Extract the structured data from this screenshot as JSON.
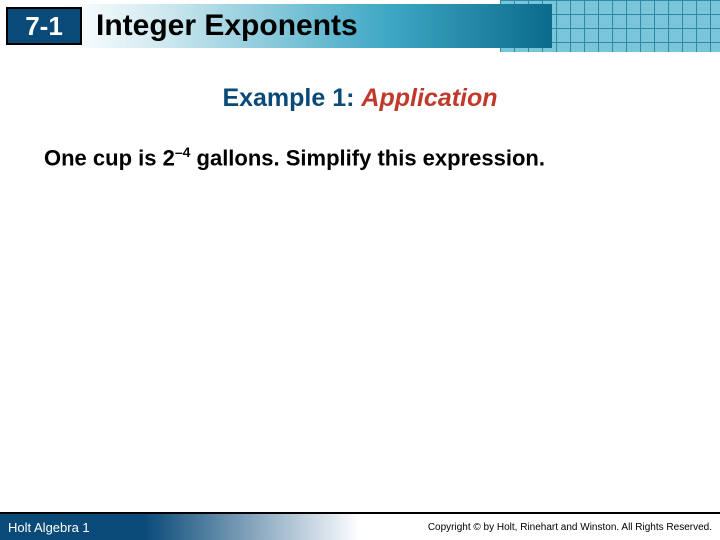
{
  "header": {
    "section_number": "7-1",
    "title": "Integer Exponents",
    "badge_bg": "#0a4a78",
    "badge_text_color": "#ffffff",
    "title_color": "#000000",
    "gradient_colors": [
      "#ffffff",
      "#cde8ef",
      "#3fa8c4",
      "#0a6b8a"
    ],
    "grid_bg_color": "#7ac5d8",
    "grid_line_color": "#2a8aa8"
  },
  "example": {
    "label": "Example 1:",
    "name": "Application",
    "label_color": "#0a4a78",
    "name_color": "#c0392b",
    "fontsize": 25
  },
  "problem": {
    "prefix": "One cup is 2",
    "exponent": "–4",
    "suffix": " gallons. Simplify this expression.",
    "fontsize": 22,
    "color": "#000000"
  },
  "footer": {
    "left": "Holt Algebra 1",
    "right": "Copyright © by Holt, Rinehart and Winston. All Rights Reserved.",
    "bg_gradient": [
      "#0a4a78",
      "#ffffff"
    ],
    "left_color": "#ffffff",
    "right_color": "#000000"
  }
}
